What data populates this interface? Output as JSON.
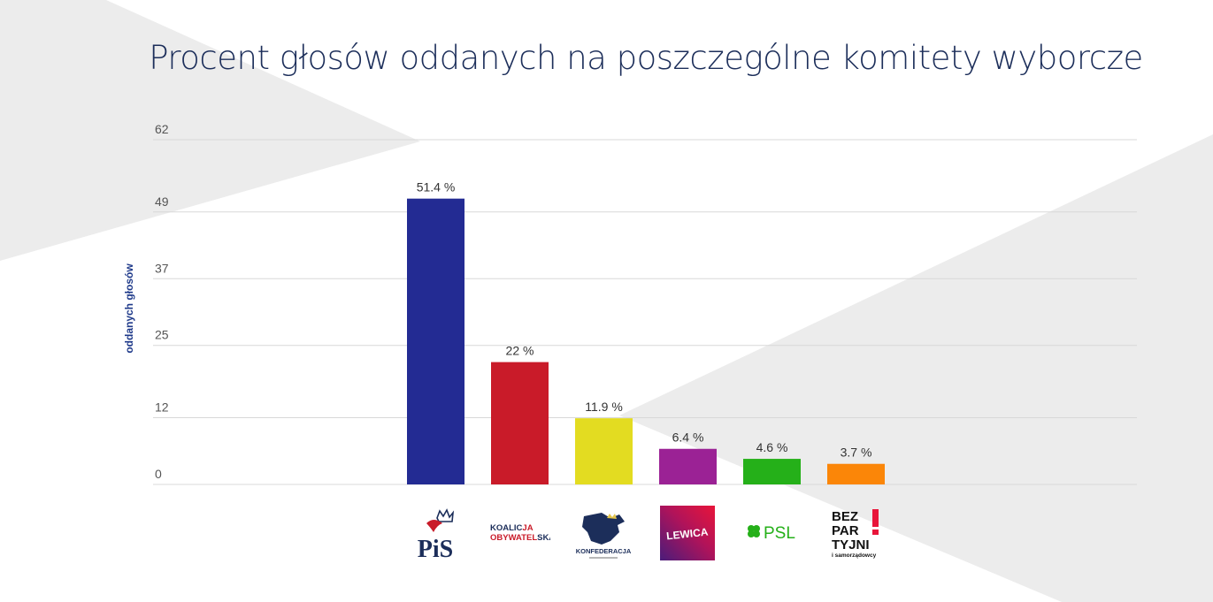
{
  "chart_data": {
    "type": "bar",
    "title": "Procent głosów oddanych na poszczególne komitety wyborcze",
    "ylabel": "oddanych głosów",
    "yticks": [
      "62",
      "49",
      "37",
      "25",
      "12",
      "0"
    ],
    "ylim": [
      0,
      62
    ],
    "grid": true,
    "categories": [
      "PiS",
      "Koalicja Obywatelska",
      "Konfederacja",
      "Lewica",
      "PSL",
      "Bezpartyjni i samorządowcy"
    ],
    "values": [
      51.4,
      22,
      11.9,
      6.4,
      4.6,
      3.7
    ],
    "value_labels": [
      "51.4 %",
      "22 %",
      "11.9 %",
      "6.4 %",
      "4.6 %",
      "3.7 %"
    ],
    "colors": [
      "#232b93",
      "#c91b29",
      "#e3dc21",
      "#9b2295",
      "#25b019",
      "#fb8608"
    ]
  },
  "logos": {
    "pis": "PiS",
    "ko_line1_a": "KOALIC",
    "ko_line1_b": "JA",
    "ko_line2_a": "OBYWATEL",
    "ko_line2_b": "SKA",
    "konfederacja": "KONFEDERACJA",
    "lewica": "LEWICA",
    "psl": "PSL",
    "bez_line1": "BEZ",
    "bez_line2": "PAR",
    "bez_line3": "TYJNI",
    "bez_line4": "i samorządowcy"
  },
  "theme": {
    "grid": "#d8d8d8",
    "tick_text": "#555555",
    "value_text": "#333333",
    "bg_shapes": "#ececec"
  }
}
